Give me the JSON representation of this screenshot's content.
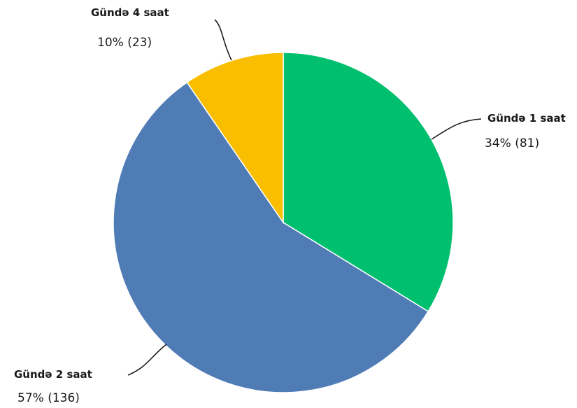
{
  "chart_data": {
    "type": "pie",
    "title": "",
    "start_angle_deg": 0,
    "direction": "clockwise",
    "slices": [
      {
        "label": "Gündə 1 saat",
        "percent_label": "34% (81)",
        "value": 81,
        "color": "#00BF6F"
      },
      {
        "label": "Gündə 2 saat",
        "percent_label": "57% (136)",
        "value": 136,
        "color": "#507CB6"
      },
      {
        "label": "Gündə 4 saat",
        "percent_label": "10% (23)",
        "value": 23,
        "color": "#F9BE00"
      }
    ]
  }
}
